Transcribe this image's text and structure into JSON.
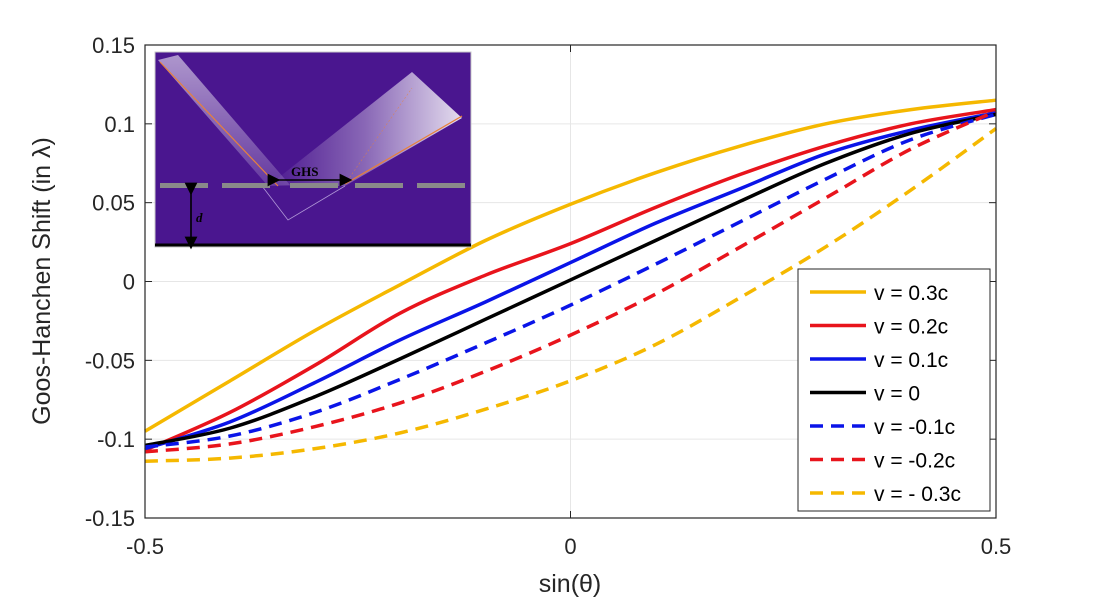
{
  "chart_data": {
    "type": "line",
    "title": "",
    "xlabel": "sin(θ)",
    "ylabel": "Goos-Hanchen Shift (in λ)",
    "xlim": [
      -0.5,
      0.5
    ],
    "ylim": [
      -0.15,
      0.15
    ],
    "xticks": [
      "-0.5",
      "0",
      "0.5"
    ],
    "yticks": [
      "0.15",
      "0.1",
      "0.05",
      "0",
      "-0.05",
      "-0.1",
      "-0.15"
    ],
    "grid": true,
    "legend_position": "bottom-right",
    "x": [
      -0.5,
      -0.4,
      -0.3,
      -0.2,
      -0.1,
      0.0,
      0.1,
      0.2,
      0.3,
      0.4,
      0.5
    ],
    "series": [
      {
        "name": "v = 0.3c",
        "color": "#f5b800",
        "dash": "solid",
        "values": [
          -0.095,
          -0.063,
          -0.031,
          -0.002,
          0.026,
          0.049,
          0.069,
          0.086,
          0.1,
          0.109,
          0.115
        ]
      },
      {
        "name": "v = 0.2c",
        "color": "#e8141c",
        "dash": "solid",
        "values": [
          -0.107,
          -0.083,
          -0.053,
          -0.02,
          0.004,
          0.024,
          0.047,
          0.068,
          0.086,
          0.1,
          0.109
        ]
      },
      {
        "name": "v = 0.1c",
        "color": "#0a14e8",
        "dash": "solid",
        "values": [
          -0.106,
          -0.089,
          -0.064,
          -0.037,
          -0.013,
          0.012,
          0.037,
          0.059,
          0.081,
          0.096,
          0.107
        ]
      },
      {
        "name": "v = 0",
        "color": "#000000",
        "dash": "solid",
        "values": [
          -0.104,
          -0.093,
          -0.073,
          -0.049,
          -0.024,
          0.001,
          0.026,
          0.051,
          0.075,
          0.094,
          0.106
        ]
      },
      {
        "name": "v = -0.1c",
        "color": "#0a14e8",
        "dash": "dashed",
        "values": [
          -0.105,
          -0.098,
          -0.083,
          -0.062,
          -0.039,
          -0.015,
          0.011,
          0.038,
          0.065,
          0.09,
          0.106
        ]
      },
      {
        "name": "v = -0.2c",
        "color": "#e8141c",
        "dash": "dashed",
        "values": [
          -0.108,
          -0.103,
          -0.092,
          -0.077,
          -0.057,
          -0.034,
          -0.008,
          0.022,
          0.053,
          0.084,
          0.108
        ]
      },
      {
        "name": "v = - 0.3c",
        "color": "#f5b800",
        "dash": "dashed",
        "values": [
          -0.114,
          -0.112,
          -0.106,
          -0.096,
          -0.081,
          -0.063,
          -0.04,
          -0.01,
          0.022,
          0.058,
          0.097
        ]
      }
    ],
    "inset": {
      "labels": [
        "GHS",
        "d"
      ]
    }
  }
}
